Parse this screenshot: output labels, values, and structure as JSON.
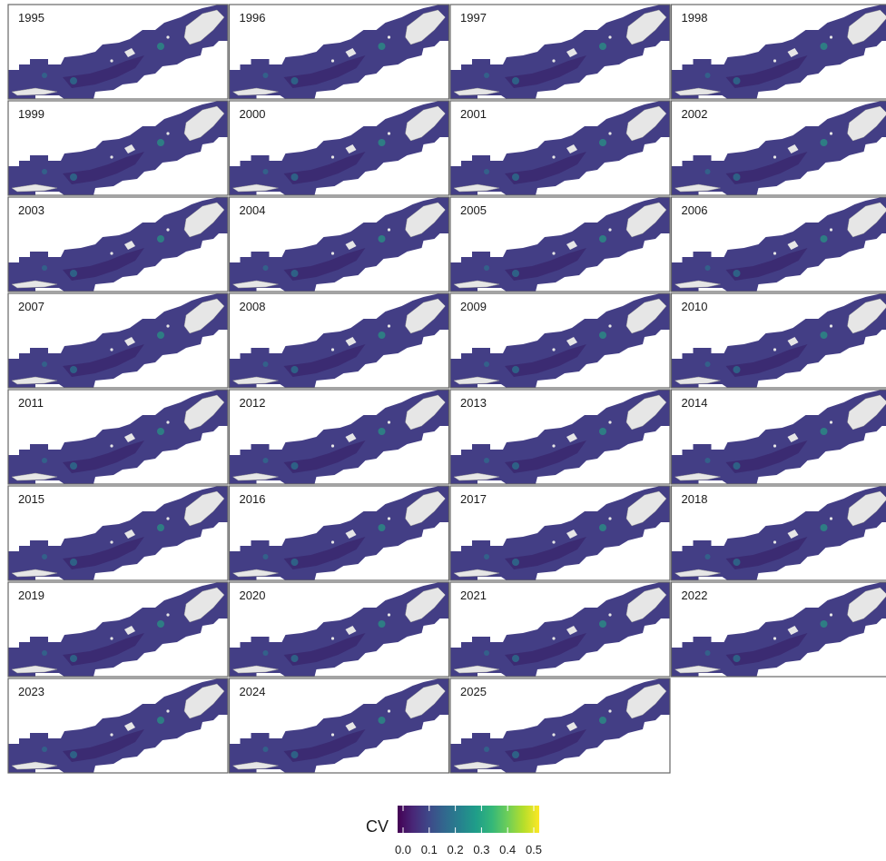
{
  "panels": [
    "1995",
    "1996",
    "1997",
    "1998",
    "1999",
    "2000",
    "2001",
    "2002",
    "2003",
    "2004",
    "2005",
    "2006",
    "2007",
    "2008",
    "2009",
    "2010",
    "2011",
    "2012",
    "2013",
    "2014",
    "2015",
    "2016",
    "2017",
    "2018",
    "2019",
    "2020",
    "2021",
    "2022",
    "2023",
    "2024",
    "2025"
  ],
  "legend": {
    "title": "CV",
    "lim": [
      0,
      0.5
    ],
    "ticks": [
      {
        "value": 0,
        "label": "0.0"
      },
      {
        "value": 0.1,
        "label": "0.1"
      },
      {
        "value": 0.2,
        "label": "0.2"
      },
      {
        "value": 0.3,
        "label": "0.3"
      },
      {
        "value": 0.4,
        "label": "0.4"
      },
      {
        "value": 0.5,
        "label": "0.5"
      }
    ],
    "palette": [
      "#440154",
      "#482878",
      "#3e4989",
      "#31688e",
      "#26828e",
      "#1f9e89",
      "#35b779",
      "#6ece58",
      "#b5de2b",
      "#fde725"
    ]
  }
}
